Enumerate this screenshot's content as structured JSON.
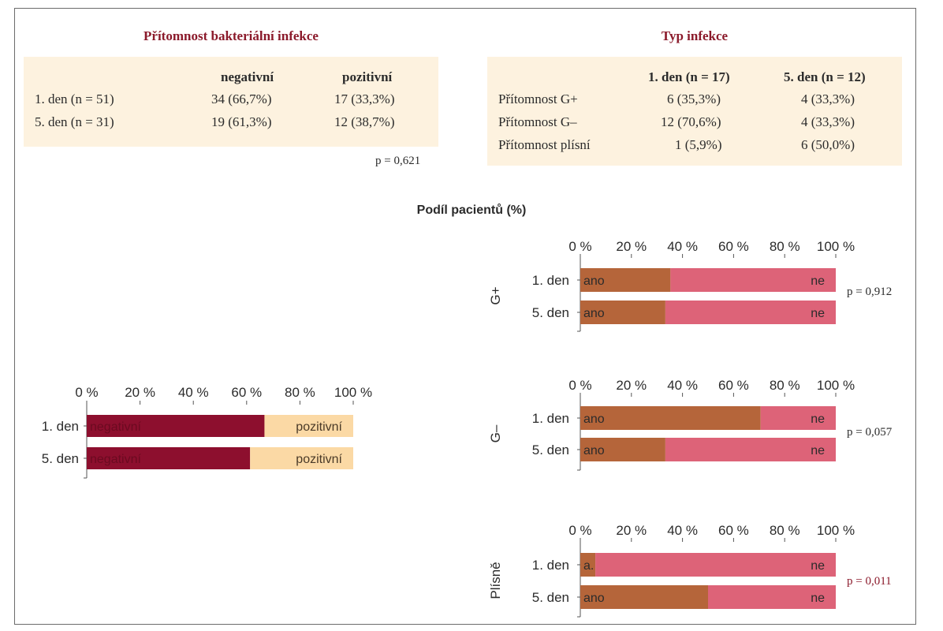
{
  "left_table": {
    "title": "Přítomnost bakteriální infekce",
    "headers": [
      "",
      "negativní",
      "pozitivní"
    ],
    "rows": [
      [
        "1. den (n = 51)",
        "34 (66,7%)",
        "17 (33,3%)"
      ],
      [
        "5. den (n = 31)",
        "19 (61,3%)",
        "12 (38,7%)"
      ]
    ],
    "p_value": "p = 0,621"
  },
  "right_table": {
    "title": "Typ infekce",
    "headers": [
      "",
      "1. den (n = 17)",
      "5. den (n = 12)"
    ],
    "rows": [
      [
        "Přítomnost G+",
        "6 (35,3%)",
        "4 (33,3%)"
      ],
      [
        "Přítomnost G–",
        "12 (70,6%)",
        "4 (33,3%)"
      ],
      [
        "Přítomnost plísní",
        "1 (5,9%)",
        "6 (50,0%)"
      ]
    ]
  },
  "chart_title": "Podíl pacientů (%)",
  "colors": {
    "title_red": "#8b1a2b",
    "negativni": "#8d0f2e",
    "pozitivni": "#fbd9a5",
    "ano": "#b5653a",
    "ne": "#dd6378",
    "table_bg": "#fdf2df",
    "pval_red": "#8b1a2b"
  },
  "chart_data": [
    {
      "type": "bar",
      "stacked": true,
      "orientation": "horizontal",
      "categories": [
        "1. den",
        "5. den"
      ],
      "series": [
        {
          "name": "negativní",
          "values": [
            66.7,
            61.3
          ]
        },
        {
          "name": "pozitivní",
          "values": [
            33.3,
            38.7
          ]
        }
      ],
      "ticks": [
        "0 %",
        "20 %",
        "40 %",
        "60 %",
        "80 %",
        "100 %"
      ],
      "xlim": [
        0,
        100
      ]
    },
    {
      "type": "bar",
      "stacked": true,
      "orientation": "horizontal",
      "group_label": "G+",
      "categories": [
        "1. den",
        "5. den"
      ],
      "series": [
        {
          "name": "ano",
          "values": [
            35.3,
            33.3
          ]
        },
        {
          "name": "ne",
          "values": [
            64.7,
            66.7
          ]
        }
      ],
      "ticks": [
        "0 %",
        "20 %",
        "40 %",
        "60 %",
        "80 %",
        "100 %"
      ],
      "xlim": [
        0,
        100
      ],
      "p_value": "p = 0,912"
    },
    {
      "type": "bar",
      "stacked": true,
      "orientation": "horizontal",
      "group_label": "G–",
      "categories": [
        "1. den",
        "5. den"
      ],
      "series": [
        {
          "name": "ano",
          "values": [
            70.6,
            33.3
          ]
        },
        {
          "name": "ne",
          "values": [
            29.4,
            66.7
          ]
        }
      ],
      "ticks": [
        "0 %",
        "20 %",
        "40 %",
        "60 %",
        "80 %",
        "100 %"
      ],
      "xlim": [
        0,
        100
      ],
      "p_value": "p = 0,057"
    },
    {
      "type": "bar",
      "stacked": true,
      "orientation": "horizontal",
      "group_label": "Plísně",
      "categories": [
        "1. den",
        "5. den"
      ],
      "series": [
        {
          "name": "ano",
          "values": [
            5.9,
            50.0
          ]
        },
        {
          "name": "ne",
          "values": [
            94.1,
            50.0
          ]
        }
      ],
      "bar_labels": [
        [
          "a.",
          "ne"
        ],
        [
          "ano",
          "ne"
        ]
      ],
      "ticks": [
        "0 %",
        "20 %",
        "40 %",
        "60 %",
        "80 %",
        "100 %"
      ],
      "xlim": [
        0,
        100
      ],
      "p_value": "p = 0,011"
    }
  ]
}
